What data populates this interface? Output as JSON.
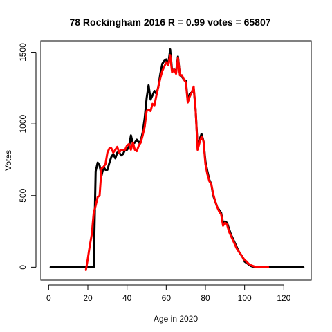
{
  "chart_data": {
    "type": "line",
    "title": "78 Rockingham 2016 R = 0.99 votes = 65807",
    "xlabel": "Age in 2020",
    "ylabel": "Votes",
    "xlim": [
      -4,
      134
    ],
    "ylim": [
      -90,
      1580
    ],
    "xticks": [
      0,
      20,
      40,
      60,
      80,
      100,
      120
    ],
    "yticks": [
      0,
      500,
      1000,
      1500
    ],
    "grid": false,
    "series": [
      {
        "color": "#000000",
        "x": [
          1,
          5,
          10,
          15,
          18,
          20,
          22,
          23,
          24,
          25,
          26,
          27,
          28,
          29,
          30,
          31,
          32,
          33,
          34,
          35,
          36,
          37,
          38,
          39,
          40,
          41,
          42,
          43,
          44,
          45,
          46,
          47,
          48,
          49,
          50,
          51,
          52,
          53,
          54,
          55,
          56,
          57,
          58,
          59,
          60,
          61,
          62,
          63,
          64,
          65,
          66,
          67,
          68,
          69,
          70,
          71,
          72,
          73,
          74,
          75,
          76,
          77,
          78,
          79,
          80,
          81,
          82,
          83,
          84,
          85,
          86,
          87,
          88,
          89,
          90,
          91,
          92,
          93,
          94,
          95,
          96,
          97,
          98,
          99,
          100,
          101,
          102,
          103,
          104,
          105,
          106,
          108,
          110,
          112,
          115,
          120,
          125,
          130
        ],
        "y": [
          0,
          0,
          0,
          0,
          0,
          0,
          0,
          0,
          670,
          730,
          710,
          640,
          700,
          680,
          680,
          730,
          770,
          790,
          760,
          800,
          800,
          780,
          790,
          820,
          820,
          840,
          920,
          860,
          870,
          890,
          870,
          880,
          940,
          1040,
          1180,
          1270,
          1170,
          1200,
          1230,
          1210,
          1260,
          1350,
          1420,
          1440,
          1450,
          1410,
          1520,
          1370,
          1380,
          1360,
          1470,
          1340,
          1330,
          1310,
          1300,
          1160,
          1210,
          1220,
          1250,
          1100,
          840,
          890,
          930,
          880,
          740,
          670,
          610,
          580,
          500,
          460,
          420,
          400,
          380,
          310,
          320,
          310,
          270,
          230,
          200,
          170,
          140,
          110,
          90,
          70,
          40,
          30,
          20,
          10,
          5,
          2,
          0,
          0,
          0,
          0,
          0,
          0,
          0,
          0
        ]
      },
      {
        "color": "#ff0000",
        "x": [
          19,
          20,
          21,
          22,
          23,
          24,
          25,
          26,
          27,
          28,
          29,
          30,
          31,
          32,
          33,
          34,
          35,
          36,
          37,
          38,
          39,
          40,
          41,
          42,
          43,
          44,
          45,
          46,
          47,
          48,
          49,
          50,
          51,
          52,
          53,
          54,
          55,
          56,
          57,
          58,
          59,
          60,
          61,
          62,
          63,
          64,
          65,
          66,
          67,
          68,
          69,
          70,
          71,
          72,
          73,
          74,
          75,
          76,
          77,
          78,
          79,
          80,
          81,
          82,
          83,
          84,
          85,
          86,
          87,
          88,
          89,
          90,
          91,
          92,
          93,
          94,
          95,
          96,
          97,
          98,
          99,
          100,
          101,
          102,
          103,
          104,
          105,
          106,
          108,
          110,
          112
        ],
        "y": [
          -20,
          60,
          150,
          230,
          380,
          430,
          490,
          500,
          690,
          700,
          720,
          800,
          830,
          830,
          800,
          820,
          840,
          800,
          820,
          820,
          820,
          850,
          860,
          820,
          870,
          820,
          810,
          850,
          870,
          920,
          980,
          1090,
          1100,
          1090,
          1140,
          1130,
          1200,
          1260,
          1320,
          1370,
          1400,
          1430,
          1410,
          1480,
          1360,
          1380,
          1350,
          1460,
          1340,
          1340,
          1310,
          1290,
          1150,
          1190,
          1220,
          1260,
          1100,
          820,
          870,
          910,
          880,
          720,
          650,
          600,
          580,
          510,
          460,
          420,
          390,
          370,
          290,
          310,
          300,
          250,
          220,
          190,
          160,
          130,
          110,
          90,
          70,
          50,
          40,
          25,
          15,
          10,
          5,
          2,
          0,
          0,
          0
        ]
      }
    ]
  }
}
